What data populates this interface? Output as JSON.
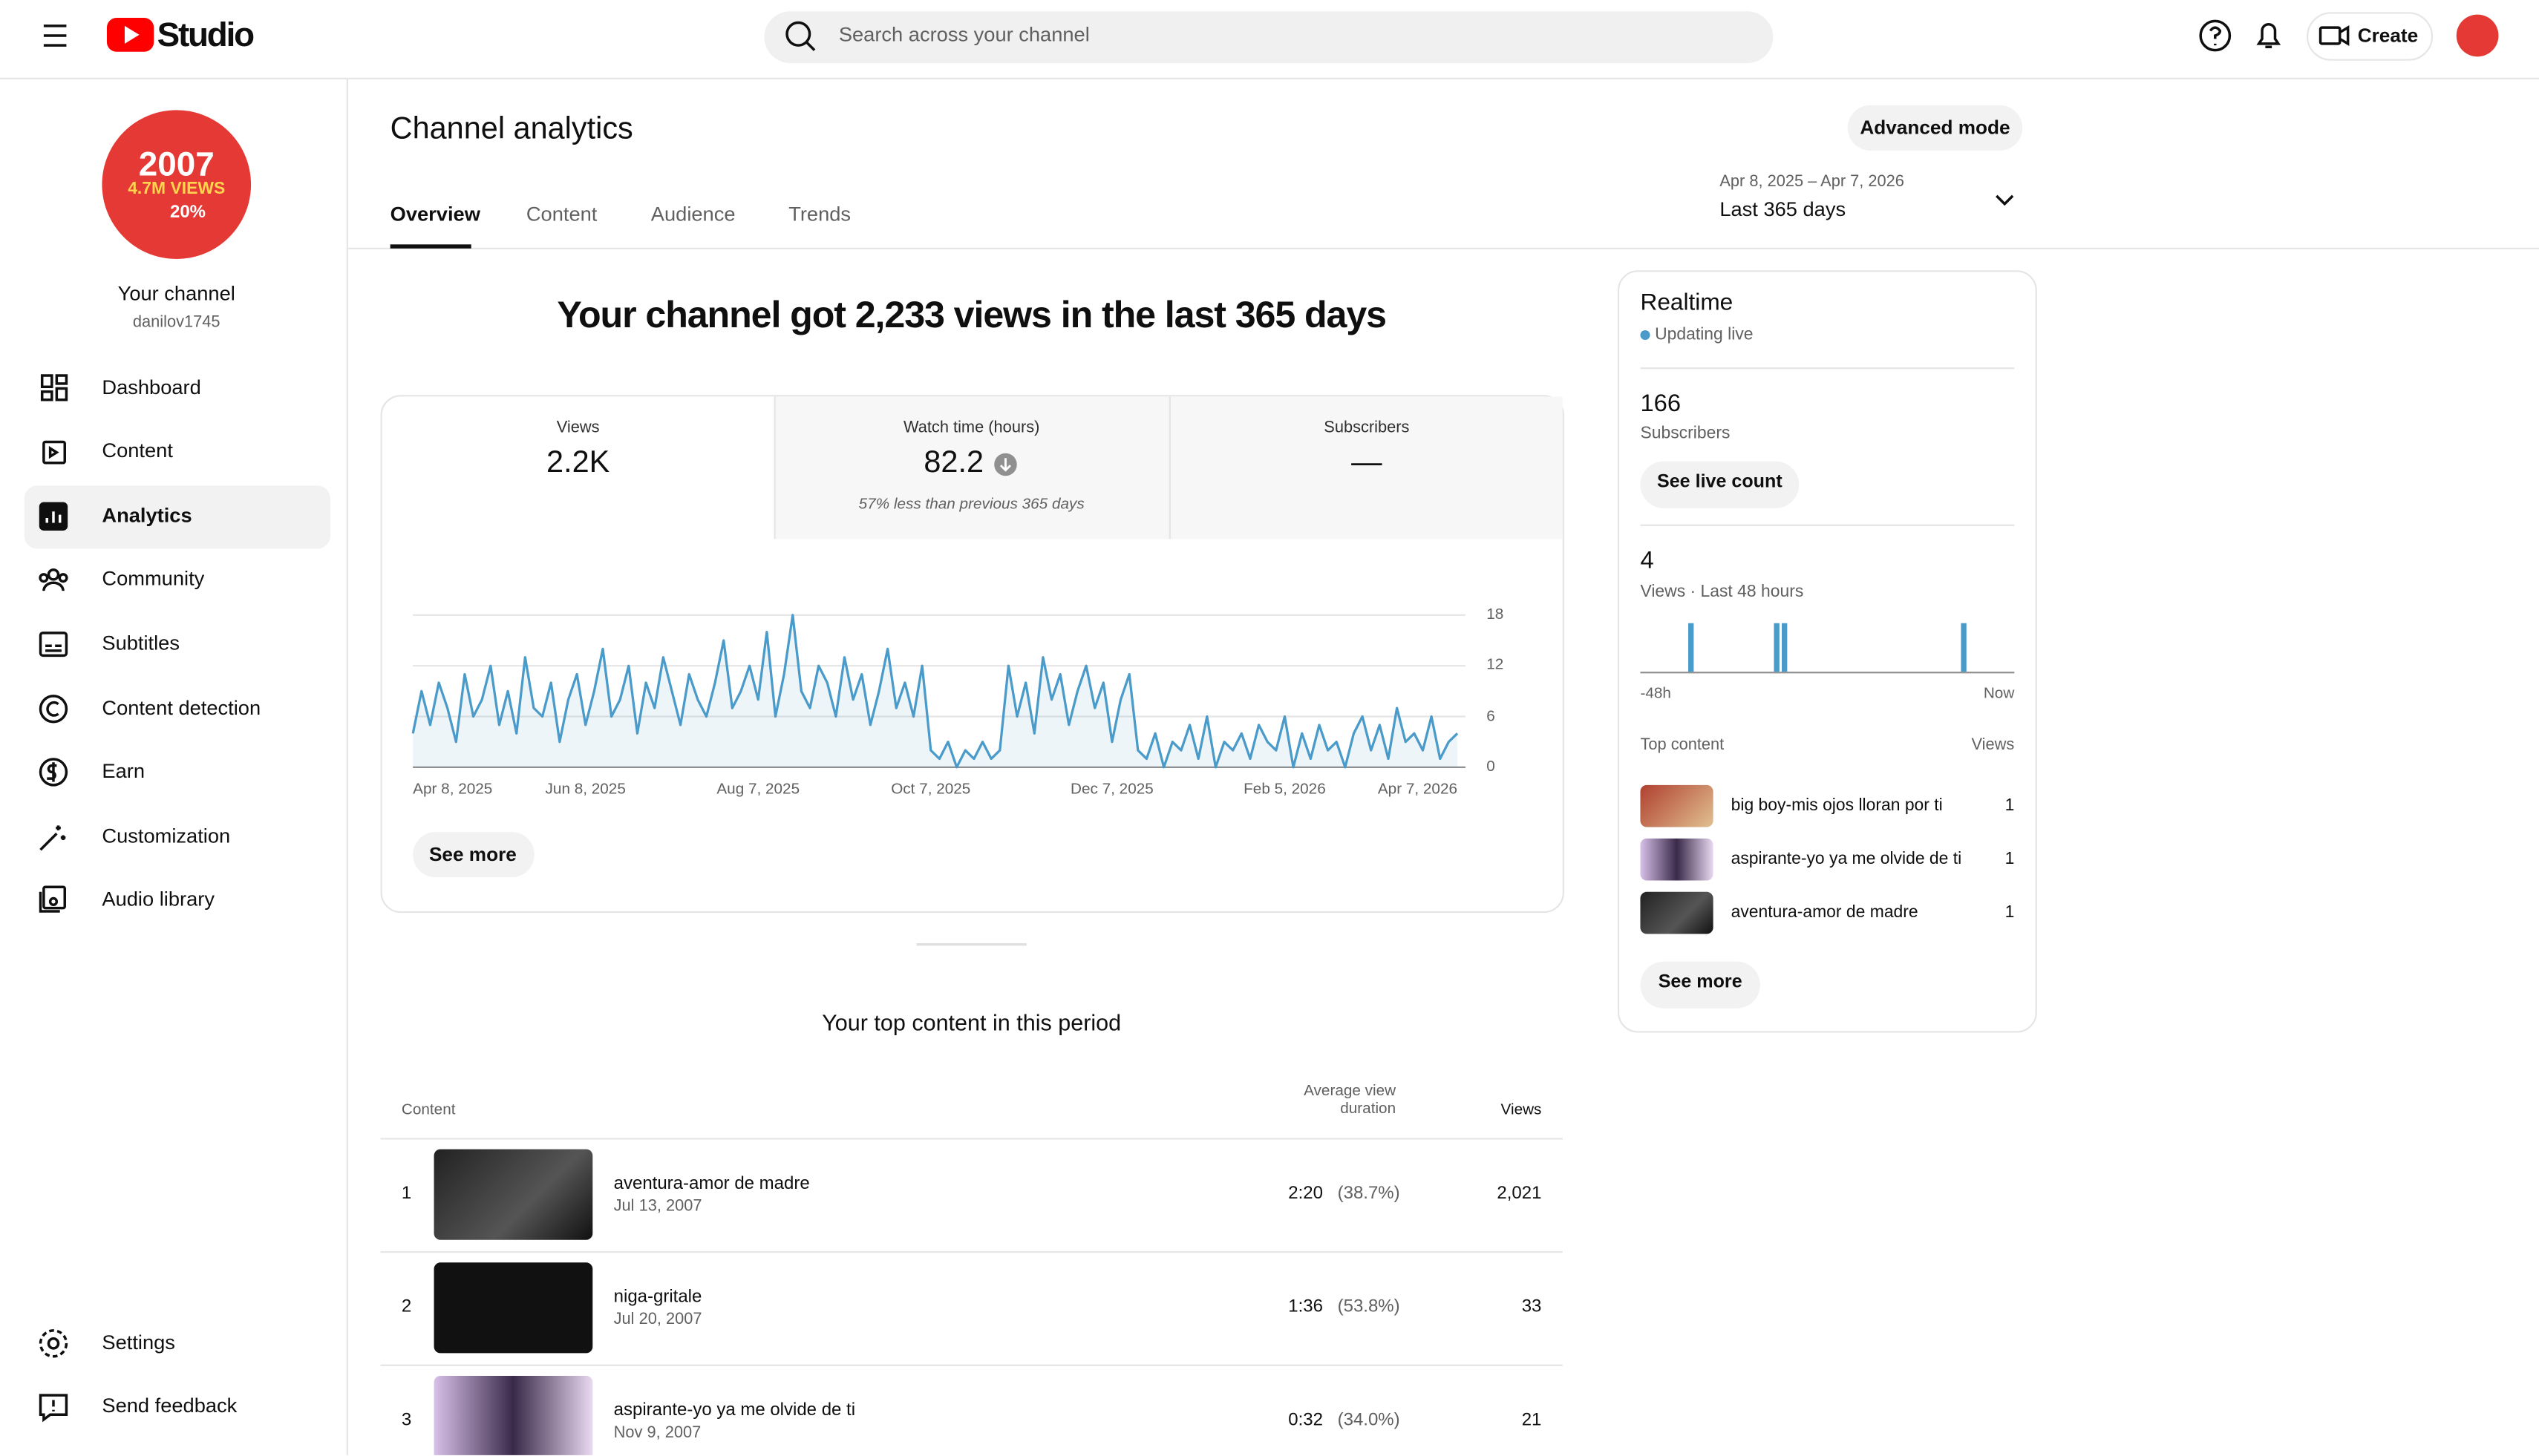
{
  "header": {
    "logo": "Studio",
    "search_placeholder": "Search across your channel",
    "create": "Create"
  },
  "sidebar": {
    "avatar_text": [
      "2007",
      "4.7M VIEWS",
      "20%"
    ],
    "channel_title": "Your channel",
    "channel_handle": "danilov1745",
    "nav": [
      "Dashboard",
      "Content",
      "Analytics",
      "Community",
      "Subtitles",
      "Content detection",
      "Earn",
      "Customization",
      "Audio library"
    ],
    "footer_nav": [
      "Settings",
      "Send feedback"
    ]
  },
  "page": {
    "title": "Channel analytics",
    "advanced_mode": "Advanced mode",
    "tabs": [
      "Overview",
      "Content",
      "Audience",
      "Trends"
    ],
    "date_range": "Apr 8, 2025 – Apr 7, 2026",
    "period": "Last 365 days",
    "headline": "Your channel got 2,233 views in the last 365 days",
    "see_more": "See more"
  },
  "metrics": [
    {
      "label": "Views",
      "value": "2.2K"
    },
    {
      "label": "Watch time (hours)",
      "value": "82.2",
      "note": "57% less than previous 365 days"
    },
    {
      "label": "Subscribers",
      "value": "—"
    }
  ],
  "chart_data": [
    {
      "type": "line",
      "color": "#4a9bc9",
      "ylim": [
        0,
        18
      ],
      "yticks": [
        0,
        6,
        12,
        18
      ],
      "grid": true,
      "xlim": [
        0,
        121
      ],
      "xticks": [
        {
          "value": 0,
          "label": "Apr 8, 2025"
        },
        {
          "value": 20,
          "label": "Jun 8, 2025"
        },
        {
          "value": 40,
          "label": "Aug 7, 2025"
        },
        {
          "value": 60,
          "label": "Oct 7, 2025"
        },
        {
          "value": 81,
          "label": "Dec 7, 2025"
        },
        {
          "value": 101,
          "label": "Feb 5, 2026"
        },
        {
          "value": 121,
          "label": "Apr 7, 2026"
        }
      ],
      "values": [
        4,
        9,
        5,
        10,
        7,
        3,
        11,
        6,
        8,
        12,
        5,
        9,
        4,
        13,
        7,
        6,
        10,
        3,
        8,
        11,
        5,
        9,
        14,
        6,
        8,
        12,
        4,
        10,
        7,
        13,
        9,
        5,
        11,
        8,
        6,
        10,
        15,
        7,
        9,
        12,
        8,
        16,
        6,
        11,
        18,
        9,
        7,
        12,
        10,
        6,
        13,
        8,
        11,
        5,
        9,
        14,
        7,
        10,
        6,
        12,
        2,
        1,
        3,
        0,
        2,
        1,
        3,
        1,
        2,
        12,
        6,
        10,
        4,
        13,
        8,
        11,
        5,
        9,
        12,
        7,
        10,
        3,
        8,
        11,
        2,
        1,
        4,
        0,
        3,
        2,
        5,
        1,
        6,
        0,
        3,
        2,
        4,
        1,
        5,
        3,
        2,
        6,
        0,
        4,
        1,
        5,
        2,
        3,
        0,
        4,
        6,
        2,
        5,
        1,
        7,
        3,
        4,
        2,
        6,
        1,
        3,
        4
      ]
    },
    {
      "type": "bar",
      "color": "#4a9bc9",
      "ylim": [
        0,
        1
      ],
      "xlim": [
        0,
        48
      ],
      "xticks": [
        {
          "value": 0,
          "label": "-48h"
        },
        {
          "value": 48,
          "label": "Now"
        }
      ],
      "values": [
        0,
        0,
        0,
        0,
        0,
        0,
        1,
        0,
        0,
        0,
        0,
        0,
        0,
        0,
        0,
        0,
        0,
        1,
        1,
        0,
        0,
        0,
        0,
        0,
        0,
        0,
        0,
        0,
        0,
        0,
        0,
        0,
        0,
        0,
        0,
        0,
        0,
        0,
        0,
        0,
        0,
        1,
        0,
        0,
        0,
        0,
        0,
        0
      ]
    }
  ],
  "top_content": {
    "title": "Your top content in this period",
    "columns": [
      "Content",
      "Average view duration",
      "Views"
    ],
    "rows": [
      {
        "rank": "1",
        "title": "aventura-amor de madre",
        "date": "Jul 13, 2007",
        "duration": "2:20",
        "percent": "(38.7%)",
        "views": "2,021"
      },
      {
        "rank": "2",
        "title": "niga-gritale",
        "date": "Jul 20, 2007",
        "duration": "1:36",
        "percent": "(53.8%)",
        "views": "33"
      },
      {
        "rank": "3",
        "title": "aspirante-yo ya me olvide de ti",
        "date": "Nov 9, 2007",
        "duration": "0:32",
        "percent": "(34.0%)",
        "views": "21"
      }
    ]
  },
  "realtime": {
    "title": "Realtime",
    "status": "Updating live",
    "subscribers": "166",
    "subscribers_label": "Subscribers",
    "see_live_count": "See live count",
    "views": "4",
    "views_label": "Views · Last 48 hours",
    "top_content_label": "Top content",
    "views_column": "Views",
    "rows": [
      {
        "title": "big boy-mis ojos lloran por ti",
        "views": "1"
      },
      {
        "title": "aspirante-yo ya me olvide de ti",
        "views": "1"
      },
      {
        "title": "aventura-amor de madre",
        "views": "1"
      }
    ],
    "see_more": "See more"
  }
}
